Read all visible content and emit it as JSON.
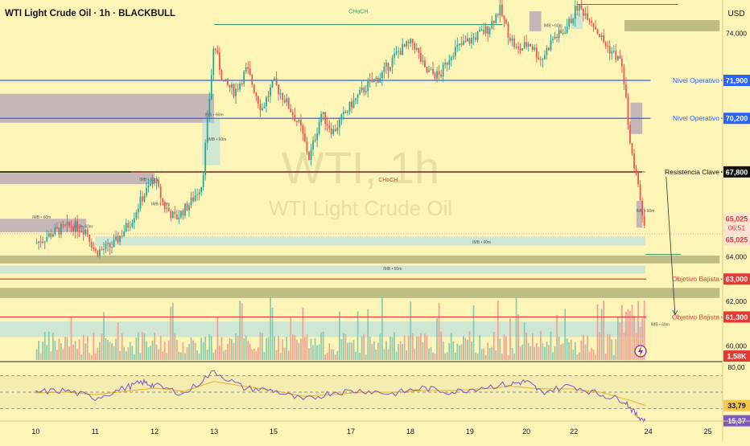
{
  "header": {
    "title": "WTI Light Crude Oil · 1h · BLACKBULL",
    "currency": "USD"
  },
  "watermark": {
    "big": "WTI, 1h",
    "sub": "WTI Light Crude Oil"
  },
  "x_axis": {
    "ticks": [
      {
        "label": "10",
        "x": 10
      },
      {
        "label": "11",
        "x": 11
      },
      {
        "label": "12",
        "x": 12
      },
      {
        "label": "13",
        "x": 13
      },
      {
        "label": "15",
        "x": 14
      },
      {
        "label": "17",
        "x": 15.3
      },
      {
        "label": "18",
        "x": 16.3
      },
      {
        "label": "19",
        "x": 17.3
      },
      {
        "label": "20",
        "x": 18.25
      },
      {
        "label": "22",
        "x": 19.05
      },
      {
        "label": "24",
        "x": 20.3
      },
      {
        "label": "25",
        "x": 21.3
      }
    ]
  },
  "y_axis": {
    "ticks": [
      "74,000",
      "64,000",
      "62,000",
      "60,000"
    ],
    "tick_values": [
      74,
      64,
      62,
      60
    ]
  },
  "rsi_axis": {
    "ticks": [
      "80,00"
    ],
    "tick_values": [
      80
    ],
    "value_label": "33,79",
    "value": 33.79,
    "value2_label": "15,37",
    "value2": 15.37
  },
  "price_badges": [
    {
      "text": "71,900",
      "price": 71.9,
      "bg": "#2962ff",
      "fg": "#ffffff"
    },
    {
      "text": "70,200",
      "price": 70.2,
      "bg": "#2962ff",
      "fg": "#ffffff"
    },
    {
      "text": "67,800",
      "price": 67.8,
      "bg": "#111111",
      "fg": "#ffffff"
    },
    {
      "text": "63,000",
      "price": 63.0,
      "bg": "#e53935",
      "fg": "#ffffff"
    },
    {
      "text": "61,300",
      "price": 61.3,
      "bg": "#e53935",
      "fg": "#ffffff"
    },
    {
      "text": "1,58K",
      "price": 59.55,
      "bg": "#e53935",
      "fg": "#ffffff"
    }
  ],
  "last_price": {
    "price": "65,025",
    "countdown": "06:51",
    "price2": "65,025"
  },
  "levels": [
    {
      "label": "Nivel Operativo",
      "price": 71.9,
      "color": "#2962ff"
    },
    {
      "label": "Nivel Operativo",
      "price": 70.2,
      "color": "#2962ff"
    },
    {
      "label": "Resistencia Clave",
      "price": 67.8,
      "color": "#111111"
    },
    {
      "label": "Objetivo Bajista",
      "price": 63.0,
      "color": "#e53935"
    },
    {
      "label": "Objetivo Bajista",
      "price": 61.3,
      "color": "#e53935"
    }
  ],
  "choch_labels": [
    {
      "text": "CHoCH",
      "color": "#2e9b62"
    },
    {
      "text": "CHoCH",
      "color": "#e53935"
    }
  ],
  "zone_label": "IMB • 60m",
  "chart_data": {
    "type": "candlestick",
    "price_ylim": [
      59.3,
      75.5
    ],
    "grid": false,
    "price_path": [
      [
        10.0,
        64.6
      ],
      [
        10.3,
        65.1
      ],
      [
        10.6,
        65.4
      ],
      [
        10.85,
        65.2
      ],
      [
        11.0,
        64.2
      ],
      [
        11.3,
        64.5
      ],
      [
        11.6,
        65.6
      ],
      [
        11.8,
        66.7
      ],
      [
        12.0,
        67.5
      ],
      [
        12.15,
        66.3
      ],
      [
        12.35,
        65.7
      ],
      [
        12.6,
        66.4
      ],
      [
        12.8,
        67.3
      ],
      [
        13.0,
        73.6
      ],
      [
        13.15,
        71.8
      ],
      [
        13.35,
        71.4
      ],
      [
        13.55,
        72.4
      ],
      [
        13.8,
        70.6
      ],
      [
        14.0,
        71.8
      ],
      [
        14.2,
        71.0
      ],
      [
        14.45,
        69.8
      ],
      [
        14.6,
        68.4
      ],
      [
        14.8,
        70.4
      ],
      [
        15.0,
        69.6
      ],
      [
        15.3,
        70.8
      ],
      [
        15.55,
        71.6
      ],
      [
        15.8,
        72.1
      ],
      [
        16.1,
        73.2
      ],
      [
        16.35,
        73.6
      ],
      [
        16.55,
        72.3
      ],
      [
        16.8,
        72.1
      ],
      [
        17.0,
        73.2
      ],
      [
        17.3,
        73.7
      ],
      [
        17.6,
        74.2
      ],
      [
        17.8,
        75.1
      ],
      [
        17.95,
        74.0
      ],
      [
        18.1,
        73.2
      ],
      [
        18.3,
        73.6
      ],
      [
        18.5,
        72.8
      ],
      [
        18.7,
        73.8
      ],
      [
        18.85,
        74.0
      ],
      [
        19.0,
        74.6
      ],
      [
        19.1,
        75.2
      ],
      [
        19.3,
        74.8
      ],
      [
        19.55,
        73.6
      ],
      [
        19.75,
        73.0
      ],
      [
        19.85,
        72.6
      ],
      [
        19.95,
        70.4
      ],
      [
        20.02,
        68.5
      ],
      [
        20.1,
        67.6
      ],
      [
        20.18,
        66.2
      ],
      [
        20.25,
        65.0
      ]
    ],
    "rsi_ylim": [
      15,
      85
    ],
    "rsi_levels": [
      70,
      50,
      30
    ],
    "rsi_path": [
      [
        10.0,
        50
      ],
      [
        10.5,
        52
      ],
      [
        11.0,
        43
      ],
      [
        11.5,
        55
      ],
      [
        11.8,
        62
      ],
      [
        12.0,
        58
      ],
      [
        12.5,
        48
      ],
      [
        13.0,
        75
      ],
      [
        13.5,
        55
      ],
      [
        14.0,
        52
      ],
      [
        14.5,
        40
      ],
      [
        15.0,
        50
      ],
      [
        15.5,
        52
      ],
      [
        16.0,
        48
      ],
      [
        16.5,
        55
      ],
      [
        17.0,
        50
      ],
      [
        17.5,
        56
      ],
      [
        18.0,
        60
      ],
      [
        18.25,
        63
      ],
      [
        18.5,
        50
      ],
      [
        19.0,
        58
      ],
      [
        19.5,
        47
      ],
      [
        19.9,
        40
      ],
      [
        20.1,
        22
      ],
      [
        20.25,
        15.37
      ]
    ],
    "rsi_ma_path": [
      [
        10.0,
        49
      ],
      [
        10.5,
        50
      ],
      [
        11.0,
        47
      ],
      [
        11.5,
        51
      ],
      [
        12.0,
        55
      ],
      [
        12.5,
        51
      ],
      [
        13.0,
        63
      ],
      [
        13.5,
        57
      ],
      [
        14.0,
        52
      ],
      [
        14.5,
        45
      ],
      [
        15.0,
        47
      ],
      [
        15.5,
        50
      ],
      [
        16.0,
        50
      ],
      [
        16.5,
        52
      ],
      [
        17.0,
        52
      ],
      [
        17.5,
        54
      ],
      [
        18.0,
        57
      ],
      [
        18.5,
        54
      ],
      [
        19.0,
        54
      ],
      [
        19.5,
        50
      ],
      [
        20.0,
        40
      ],
      [
        20.25,
        33.79
      ]
    ],
    "choch": [
      {
        "from_x": 13.0,
        "to_x": 17.85,
        "price": 74.4
      },
      {
        "from_x": 11.6,
        "to_x": 20.25,
        "price": 67.8
      }
    ],
    "zones": [
      {
        "x0": 9.4,
        "x1": 13.0,
        "p0": 71.3,
        "p1": 70.0,
        "color": "#9b82b4"
      },
      {
        "x0": 9.4,
        "x1": 10.85,
        "p0": 65.7,
        "p1": 65.1,
        "color": "#9b82b4"
      },
      {
        "x0": 9.4,
        "x1": 12.0,
        "p0": 67.75,
        "p1": 67.25,
        "color": "#9b82b4"
      },
      {
        "x0": 11.0,
        "x1": 20.25,
        "p0": 64.9,
        "p1": 64.5,
        "color": "#a8d8e8"
      },
      {
        "x0": 9.4,
        "x1": 21.5,
        "p0": 64.05,
        "p1": 63.7,
        "color": "#8c8c5c"
      },
      {
        "x0": 9.4,
        "x1": 20.25,
        "p0": 63.6,
        "p1": 63.25,
        "color": "#a8d8e8"
      },
      {
        "x0": 9.4,
        "x1": 21.5,
        "p0": 62.6,
        "p1": 62.15,
        "color": "#8c8c5c"
      },
      {
        "x0": 9.4,
        "x1": 20.25,
        "p0": 61.1,
        "p1": 60.4,
        "color": "#a8d8e8"
      },
      {
        "x0": 19.9,
        "x1": 21.5,
        "p0": 74.6,
        "p1": 74.1,
        "color": "#8c8c5c"
      },
      {
        "x0": 12.8,
        "x1": 13.1,
        "p0": 70.2,
        "p1": 68.1,
        "color": "#a8d8e8"
      },
      {
        "x0": 20.0,
        "x1": 20.2,
        "p0": 70.9,
        "p1": 69.5,
        "color": "#9b82b4"
      },
      {
        "x0": 20.1,
        "x1": 20.2,
        "p0": 66.5,
        "p1": 65.3,
        "color": "#9b82b4"
      },
      {
        "x0": 18.3,
        "x1": 18.5,
        "p0": 75.0,
        "p1": 74.1,
        "color": "#9b82b4"
      },
      {
        "x0": 19.0,
        "x1": 19.2,
        "p0": 74.9,
        "p1": 74.2,
        "color": "#a8d8e8"
      }
    ],
    "projection": {
      "from_x": 20.6,
      "from_p": 67.6,
      "to_x": 20.75,
      "to_p": 61.4
    }
  }
}
